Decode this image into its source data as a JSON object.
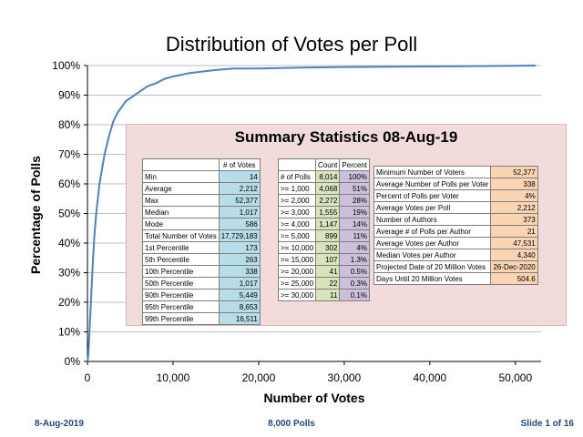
{
  "chart_data": {
    "type": "line",
    "title": "Distribution of Votes per Poll",
    "xlabel": "Number of Votes",
    "ylabel": "Percentage of Polls",
    "xlim": [
      0,
      53000
    ],
    "ylim": [
      0,
      1
    ],
    "x_ticks": [
      0,
      10000,
      20000,
      30000,
      40000,
      50000
    ],
    "x_tick_labels": [
      "0",
      "10,000",
      "20,000",
      "30,000",
      "40,000",
      "50,000"
    ],
    "y_ticks": [
      0,
      0.1,
      0.2,
      0.3,
      0.4,
      0.5,
      0.6,
      0.7,
      0.8,
      0.9,
      1.0
    ],
    "y_tick_labels": [
      "0%",
      "10%",
      "20%",
      "30%",
      "40%",
      "50%",
      "60%",
      "70%",
      "80%",
      "90%",
      "100%"
    ],
    "grid": true,
    "series": [
      {
        "color": "#4f81bd",
        "x": [
          0,
          100,
          200,
          400,
          586,
          800,
          1017,
          1400,
          2000,
          2500,
          3000,
          3500,
          4000,
          4500,
          5000,
          6000,
          7000,
          8000,
          9000,
          10000,
          12000,
          15000,
          17000,
          20000,
          25000,
          30000,
          40000,
          50000,
          52377
        ],
        "y": [
          0,
          0.02,
          0.08,
          0.2,
          0.31,
          0.42,
          0.5,
          0.6,
          0.7,
          0.76,
          0.81,
          0.84,
          0.86,
          0.88,
          0.89,
          0.91,
          0.93,
          0.94,
          0.955,
          0.963,
          0.975,
          0.985,
          0.99,
          0.99,
          0.993,
          0.995,
          0.997,
          0.999,
          1.0
        ]
      }
    ]
  },
  "summary": {
    "title": "Summary Statistics 08-Aug-19",
    "votes_header": "# of Votes",
    "votes_rows": [
      {
        "label": "Min",
        "value": "14"
      },
      {
        "label": "Average",
        "value": "2,212"
      },
      {
        "label": "Max",
        "value": "52,377"
      },
      {
        "label": "Median",
        "value": "1,017"
      },
      {
        "label": "Mode",
        "value": "586"
      },
      {
        "label": "Total Number of Votes",
        "value": "17,729,183"
      },
      {
        "label": "1st Percentile",
        "value": "173"
      },
      {
        "label": "5th Percentile",
        "value": "263"
      },
      {
        "label": "10th Percentile",
        "value": "338"
      },
      {
        "label": "50th Percentile",
        "value": "1,017"
      },
      {
        "label": "90th Percentile",
        "value": "5,449"
      },
      {
        "label": "95th Percentile",
        "value": "8,653"
      },
      {
        "label": "99th Percentile",
        "value": "16,511"
      }
    ],
    "polls_headers": {
      "count": "Count",
      "percent": "Percent"
    },
    "polls_rows": [
      {
        "label": "# of Polls",
        "count": "8,014",
        "percent": "100%"
      },
      {
        "label": ">= 1,000",
        "count": "4,068",
        "percent": "51%"
      },
      {
        "label": ">= 2,000",
        "count": "2,272",
        "percent": "28%"
      },
      {
        "label": ">= 3,000",
        "count": "1,555",
        "percent": "19%"
      },
      {
        "label": ">= 4,000",
        "count": "1,147",
        "percent": "14%"
      },
      {
        "label": ">= 5,000",
        "count": "899",
        "percent": "11%"
      },
      {
        "label": ">= 10,000",
        "count": "302",
        "percent": "4%"
      },
      {
        "label": ">= 15,000",
        "count": "107",
        "percent": "1.3%"
      },
      {
        "label": ">= 20,000",
        "count": "41",
        "percent": "0.5%"
      },
      {
        "label": ">= 25,000",
        "count": "22",
        "percent": "0.3%"
      },
      {
        "label": ">= 30,000",
        "count": "11",
        "percent": "0.1%"
      }
    ],
    "misc_rows": [
      {
        "label": "Minimum Number of Voters",
        "value": "52,377"
      },
      {
        "label": "Average Number of Polls per Voter",
        "value": "338"
      },
      {
        "label": "Percent of Polls per Voter",
        "value": "4%"
      },
      {
        "label": "Average Votes per Poll",
        "value": "2,212"
      },
      {
        "label": "Number of Authors",
        "value": "373"
      },
      {
        "label": "Average # of Polls per Author",
        "value": "21"
      },
      {
        "label": "Average Votes per Author",
        "value": "47,531"
      },
      {
        "label": "Median Votes per Author",
        "value": "4,340"
      },
      {
        "label": "Projected Date of 20 Million Votes",
        "value": "26-Dec-2020"
      },
      {
        "label": "Days Until 20 Million Votes",
        "value": "504.6"
      }
    ]
  },
  "footer": {
    "date": "8-Aug-2019",
    "center": "8,000 Polls",
    "slide": "Slide 1 of 16"
  },
  "colors": {
    "accent": "#4f81bd",
    "footer_text": "#1f497d",
    "panel_background": "#f2dcdb"
  }
}
